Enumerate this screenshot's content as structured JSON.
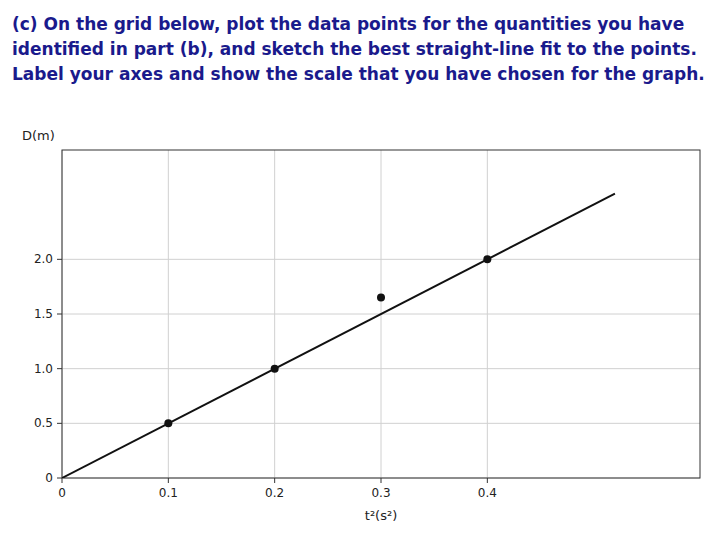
{
  "chart_data": {
    "type": "scatter",
    "title": "(c) On the grid below, plot the data points for the quantities you have identified in part (b), and sketch the best straight-line fit to the points. Label your axes and show the scale that you have chosen for the graph.",
    "x_label": "t²(s²)",
    "y_label": "D(m)",
    "xlim": [
      0,
      0.6
    ],
    "ylim": [
      0,
      3.0
    ],
    "xticks": [
      0,
      0.1,
      0.2,
      0.3,
      0.4
    ],
    "yticks": [
      0,
      0.5,
      {
        "value": 1.0,
        "label": "1.0"
      },
      {
        "value": 1.5,
        "label": "1.5"
      },
      {
        "value": 2.0,
        "label": "2.0"
      }
    ],
    "grid": true,
    "series": [
      {
        "type": "scatter",
        "color": "#111111",
        "x": [
          0.1,
          0.2,
          0.3,
          0.4
        ],
        "values": [
          0.5,
          1.0,
          1.65,
          2.0
        ]
      },
      {
        "type": "line",
        "color": "#111111",
        "x": [
          0.0,
          0.52
        ],
        "values": [
          0.0,
          2.6
        ]
      }
    ]
  }
}
